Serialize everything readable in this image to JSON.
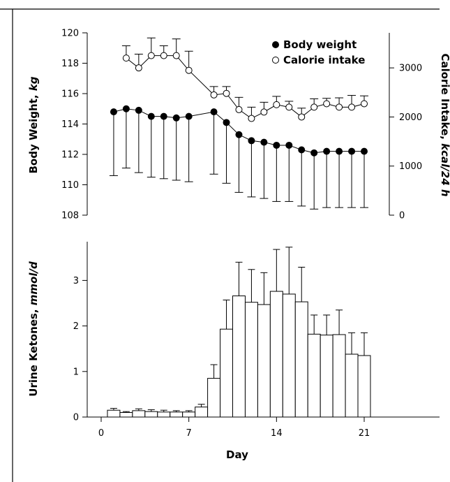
{
  "chart_data": [
    {
      "type": "line",
      "x": [
        1,
        2,
        3,
        4,
        5,
        6,
        7,
        9,
        10,
        11,
        12,
        13,
        14,
        15,
        16,
        17,
        18,
        19,
        20,
        21
      ],
      "series": [
        {
          "name": "Body weight",
          "axis": "left",
          "marker": "filled-circle",
          "color": "#000000",
          "values": [
            114.8,
            115.0,
            114.9,
            114.5,
            114.5,
            114.4,
            114.5,
            114.8,
            114.1,
            113.3,
            112.9,
            112.8,
            112.6,
            112.6,
            112.3,
            112.1,
            112.2,
            112.2,
            112.2,
            112.2
          ],
          "error_lower": [
            110.6,
            111.1,
            110.8,
            110.5,
            110.4,
            110.3,
            110.2,
            110.7,
            110.1,
            109.5,
            109.2,
            109.1,
            108.9,
            108.9,
            108.6,
            108.4,
            108.5,
            108.5,
            108.5,
            108.5
          ]
        },
        {
          "name": "Calorie intake",
          "axis": "right",
          "marker": "open-circle",
          "color": "#000000",
          "x": [
            2,
            3,
            4,
            5,
            6,
            7,
            9,
            10,
            11,
            12,
            13,
            14,
            15,
            16,
            17,
            18,
            19,
            20,
            21
          ],
          "values": [
            3200,
            3000,
            3250,
            3250,
            3250,
            2950,
            2450,
            2480,
            2150,
            1970,
            2100,
            2250,
            2200,
            2000,
            2200,
            2270,
            2200,
            2200,
            2270
          ],
          "error_upper": [
            3450,
            3280,
            3610,
            3450,
            3590,
            3340,
            2620,
            2620,
            2400,
            2200,
            2300,
            2420,
            2320,
            2180,
            2370,
            2380,
            2390,
            2440,
            2430
          ]
        }
      ],
      "xlim": [
        0,
        24
      ],
      "ylabel_left": "Body Weight, kg",
      "ylim_left": [
        108,
        120
      ],
      "yticks_left": [
        "108",
        "110",
        "112",
        "114",
        "116",
        "118",
        "120"
      ],
      "ylabel_right": "Calorie Intake, kcal/24 h",
      "ylim_right": [
        0,
        3714
      ],
      "yticks_right": [
        "0",
        "1000",
        "2000",
        "3000"
      ],
      "legend_position": "top-right",
      "grid": false
    },
    {
      "type": "bar",
      "x": [
        1,
        2,
        3,
        4,
        5,
        6,
        7,
        8,
        9,
        10,
        11,
        12,
        13,
        14,
        15,
        16,
        17,
        18,
        19,
        20,
        21
      ],
      "values": [
        0.15,
        0.1,
        0.14,
        0.12,
        0.11,
        0.11,
        0.11,
        0.22,
        0.85,
        1.93,
        2.66,
        2.52,
        2.47,
        2.76,
        2.7,
        2.53,
        1.82,
        1.8,
        1.81,
        1.38,
        1.35
      ],
      "error_upper": [
        0.19,
        0.12,
        0.18,
        0.16,
        0.15,
        0.14,
        0.14,
        0.28,
        1.15,
        2.57,
        3.4,
        3.24,
        3.17,
        3.68,
        3.73,
        3.29,
        2.24,
        2.24,
        2.35,
        1.85,
        1.85
      ],
      "ylabel": "Urine Ketones, mmol/d",
      "ylim": [
        0,
        3.85
      ],
      "yticks": [
        "0",
        "1",
        "2",
        "3"
      ],
      "xlabel": "Day",
      "xticks": [
        "0",
        "7",
        "14",
        "21"
      ],
      "xlim": [
        0,
        24
      ],
      "grid": false
    }
  ]
}
